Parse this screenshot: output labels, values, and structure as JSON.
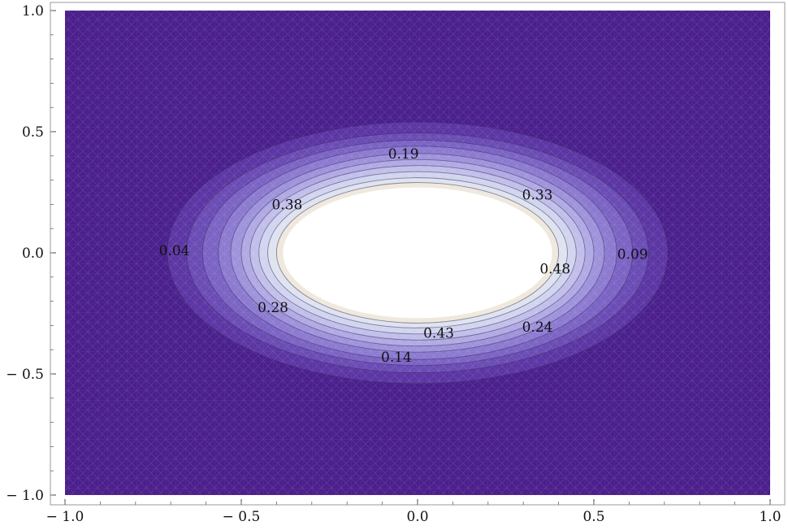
{
  "chart_data": {
    "type": "contour",
    "title": "",
    "xlabel": "",
    "ylabel": "",
    "xlim": [
      -1.0,
      1.0
    ],
    "ylim": [
      -1.0,
      1.0
    ],
    "grid": false,
    "x_ticks": [
      {
        "value": -1.0,
        "label": "− 1.0"
      },
      {
        "value": -0.5,
        "label": "− 0.5"
      },
      {
        "value": 0.0,
        "label": "0.0"
      },
      {
        "value": 0.5,
        "label": "0.5"
      },
      {
        "value": 1.0,
        "label": "1.0"
      }
    ],
    "y_ticks": [
      {
        "value": 1.0,
        "label": "1.0"
      },
      {
        "value": 0.5,
        "label": "0.5"
      },
      {
        "value": 0.0,
        "label": "0.0"
      },
      {
        "value": -0.5,
        "label": "− 0.5"
      },
      {
        "value": -1.0,
        "label": "− 1.0"
      }
    ],
    "center": [
      0.0,
      0.0
    ],
    "base_color": "#4a1f8c",
    "peak_color": "#ffffff",
    "band_colors": [
      "#4a1f8c",
      "#5b35a3",
      "#6a4bb4",
      "#7b63c4",
      "#8c7ad0",
      "#9e92db",
      "#b0a9e3",
      "#c1bfea",
      "#d1d4ef",
      "#dee3ef",
      "#efe8dc",
      "#ffffff"
    ],
    "levels": [
      {
        "value": 0.04,
        "rx": 0.71,
        "ry": 0.54
      },
      {
        "value": 0.09,
        "rx": 0.655,
        "ry": 0.495
      },
      {
        "value": 0.14,
        "rx": 0.61,
        "ry": 0.465
      },
      {
        "value": 0.19,
        "rx": 0.565,
        "ry": 0.44
      },
      {
        "value": 0.24,
        "rx": 0.53,
        "ry": 0.41
      },
      {
        "value": 0.28,
        "rx": 0.5,
        "ry": 0.385
      },
      {
        "value": 0.33,
        "rx": 0.475,
        "ry": 0.36
      },
      {
        "value": 0.38,
        "rx": 0.45,
        "ry": 0.335
      },
      {
        "value": 0.43,
        "rx": 0.425,
        "ry": 0.31
      },
      {
        "value": 0.48,
        "rx": 0.4,
        "ry": 0.29
      }
    ],
    "contour_labels": [
      {
        "text": "0.19",
        "x": -0.04,
        "y": 0.41
      },
      {
        "text": "0.33",
        "x": 0.34,
        "y": 0.24
      },
      {
        "text": "0.38",
        "x": -0.37,
        "y": 0.2
      },
      {
        "text": "0.04",
        "x": -0.69,
        "y": 0.01
      },
      {
        "text": "0.09",
        "x": 0.61,
        "y": -0.005
      },
      {
        "text": "0.48",
        "x": 0.39,
        "y": -0.065
      },
      {
        "text": "0.28",
        "x": -0.41,
        "y": -0.225
      },
      {
        "text": "0.24",
        "x": 0.34,
        "y": -0.305
      },
      {
        "text": "0.43",
        "x": 0.06,
        "y": -0.33
      },
      {
        "text": "0.14",
        "x": -0.06,
        "y": -0.43
      }
    ]
  }
}
